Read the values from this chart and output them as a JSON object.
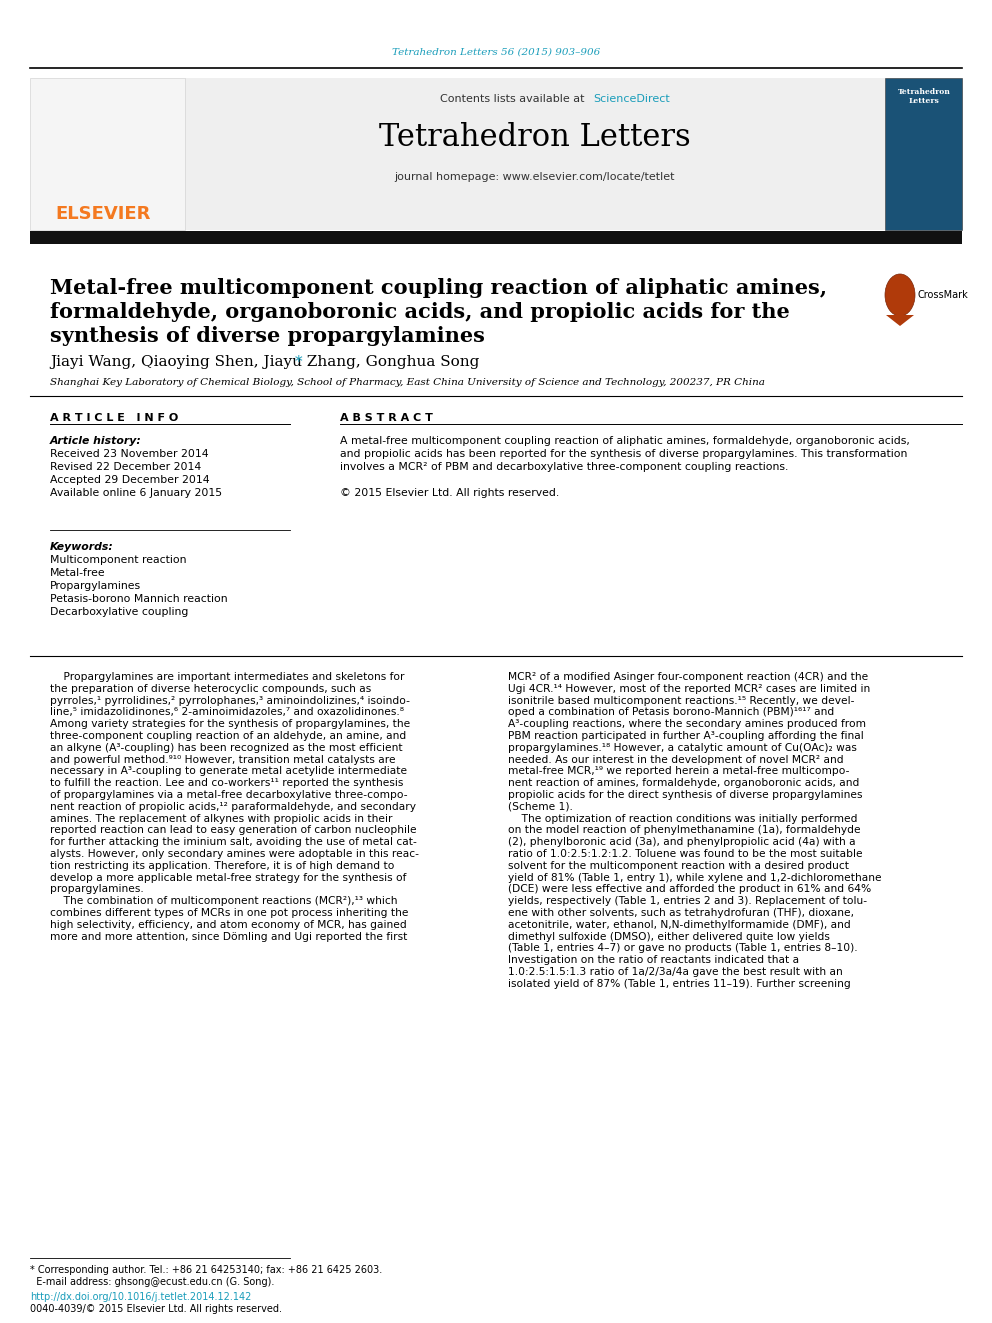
{
  "bg_color": "#ffffff",
  "header_citation": "Tetrahedron Letters 56 (2015) 903–906",
  "header_citation_color": "#1a9dba",
  "journal_name": "Tetrahedron Letters",
  "contents_text": "Contents lists available at ",
  "sciencedirect_text": "ScienceDirect",
  "sciencedirect_color": "#1a9dba",
  "homepage_text": "journal homepage: www.elsevier.com/locate/tetlet",
  "elsevier_color": "#f47920",
  "title_line1": "Metal-free multicomponent coupling reaction of aliphatic amines,",
  "title_line2": "formaldehyde, organoboronic acids, and propiolic acids for the",
  "title_line3": "synthesis of diverse propargylamines",
  "authors": "Jiayi Wang, Qiaoying Shen, Jiayu Zhang, Gonghua Song ",
  "authors_star": "*",
  "affiliation": "Shanghai Key Laboratory of Chemical Biology, School of Pharmacy, East China University of Science and Technology, 200237, PR China",
  "article_info_header": "A R T I C L E   I N F O",
  "abstract_header": "A B S T R A C T",
  "article_history_label": "Article history:",
  "received": "Received 23 November 2014",
  "revised": "Revised 22 December 2014",
  "accepted": "Accepted 29 December 2014",
  "available": "Available online 6 January 2015",
  "keywords_label": "Keywords:",
  "keywords": [
    "Multicomponent reaction",
    "Metal-free",
    "Propargylamines",
    "Petasis-borono Mannich reaction",
    "Decarboxylative coupling"
  ],
  "abstract_line1": "A metal-free multicomponent coupling reaction of aliphatic amines, formaldehyde, organoboronic acids,",
  "abstract_line2": "and propiolic acids has been reported for the synthesis of diverse propargylamines. This transformation",
  "abstract_line3": "involves a MCR² of PBM and decarboxylative three-component coupling reactions.",
  "abstract_line4": "© 2015 Elsevier Ltd. All rights reserved.",
  "body_col1_lines": [
    "    Propargylamines are important intermediates and skeletons for",
    "the preparation of diverse heterocyclic compounds, such as",
    "pyrroles,¹ pyrrolidines,² pyrrolophanes,³ aminoindolizines,⁴ isoindo-",
    "line,⁵ imidazolidinones,⁶ 2-aminoimidazoles,⁷ and oxazolidinones.⁸",
    "Among variety strategies for the synthesis of propargylamines, the",
    "three-component coupling reaction of an aldehyde, an amine, and",
    "an alkyne (A³-coupling) has been recognized as the most efficient",
    "and powerful method.⁹¹⁰ However, transition metal catalysts are",
    "necessary in A³-coupling to generate metal acetylide intermediate",
    "to fulfill the reaction. Lee and co-workers¹¹ reported the synthesis",
    "of propargylamines via a metal-free decarboxylative three-compo-",
    "nent reaction of propiolic acids,¹² paraformaldehyde, and secondary",
    "amines. The replacement of alkynes with propiolic acids in their",
    "reported reaction can lead to easy generation of carbon nucleophile",
    "for further attacking the iminium salt, avoiding the use of metal cat-",
    "alysts. However, only secondary amines were adoptable in this reac-",
    "tion restricting its application. Therefore, it is of high demand to",
    "develop a more applicable metal-free strategy for the synthesis of",
    "propargylamines.",
    "    The combination of multicomponent reactions (MCR²),¹³ which",
    "combines different types of MCRs in one pot process inheriting the",
    "high selectivity, efficiency, and atom economy of MCR, has gained",
    "more and more attention, since Dömling and Ugi reported the first"
  ],
  "body_col2_lines": [
    "MCR² of a modified Asinger four-component reaction (4CR) and the",
    "Ugi 4CR.¹⁴ However, most of the reported MCR² cases are limited in",
    "isonitrile based multicomponent reactions.¹⁵ Recently, we devel-",
    "oped a combination of Petasis borono-Mannich (PBM)¹⁶¹⁷ and",
    "A³-coupling reactions, where the secondary amines produced from",
    "PBM reaction participated in further A³-coupling affording the final",
    "propargylamines.¹⁸ However, a catalytic amount of Cu(OAc)₂ was",
    "needed. As our interest in the development of novel MCR² and",
    "metal-free MCR,¹⁹ we reported herein a metal-free multicompo-",
    "nent reaction of amines, formaldehyde, organoboronic acids, and",
    "propiolic acids for the direct synthesis of diverse propargylamines",
    "(Scheme 1).",
    "    The optimization of reaction conditions was initially performed",
    "on the model reaction of phenylmethanamine (1a), formaldehyde",
    "(2), phenylboronic acid (3a), and phenylpropiolic acid (4a) with a",
    "ratio of 1.0:2.5:1.2:1.2. Toluene was found to be the most suitable",
    "solvent for the multicomponent reaction with a desired product",
    "yield of 81% (Table 1, entry 1), while xylene and 1,2-dichloromethane",
    "(DCE) were less effective and afforded the product in 61% and 64%",
    "yields, respectively (Table 1, entries 2 and 3). Replacement of tolu-",
    "ene with other solvents, such as tetrahydrofuran (THF), dioxane,",
    "acetonitrile, water, ethanol, N,N-dimethylformamide (DMF), and",
    "dimethyl sulfoxide (DMSO), either delivered quite low yields",
    "(Table 1, entries 4–7) or gave no products (Table 1, entries 8–10).",
    "Investigation on the ratio of reactants indicated that a",
    "1.0:2.5:1.5:1.3 ratio of 1a/2/3a/4a gave the best result with an",
    "isolated yield of 87% (Table 1, entries 11–19). Further screening"
  ],
  "footnote_line1": "* Corresponding author. Tel.: +86 21 64253140; fax: +86 21 6425 2603.",
  "footnote_line2": "  E-mail address: ghsong@ecust.edu.cn (G. Song).",
  "doi_text": "http://dx.doi.org/10.1016/j.tetlet.2014.12.142",
  "issn_text": "0040-4039/© 2015 Elsevier Ltd. All rights reserved."
}
